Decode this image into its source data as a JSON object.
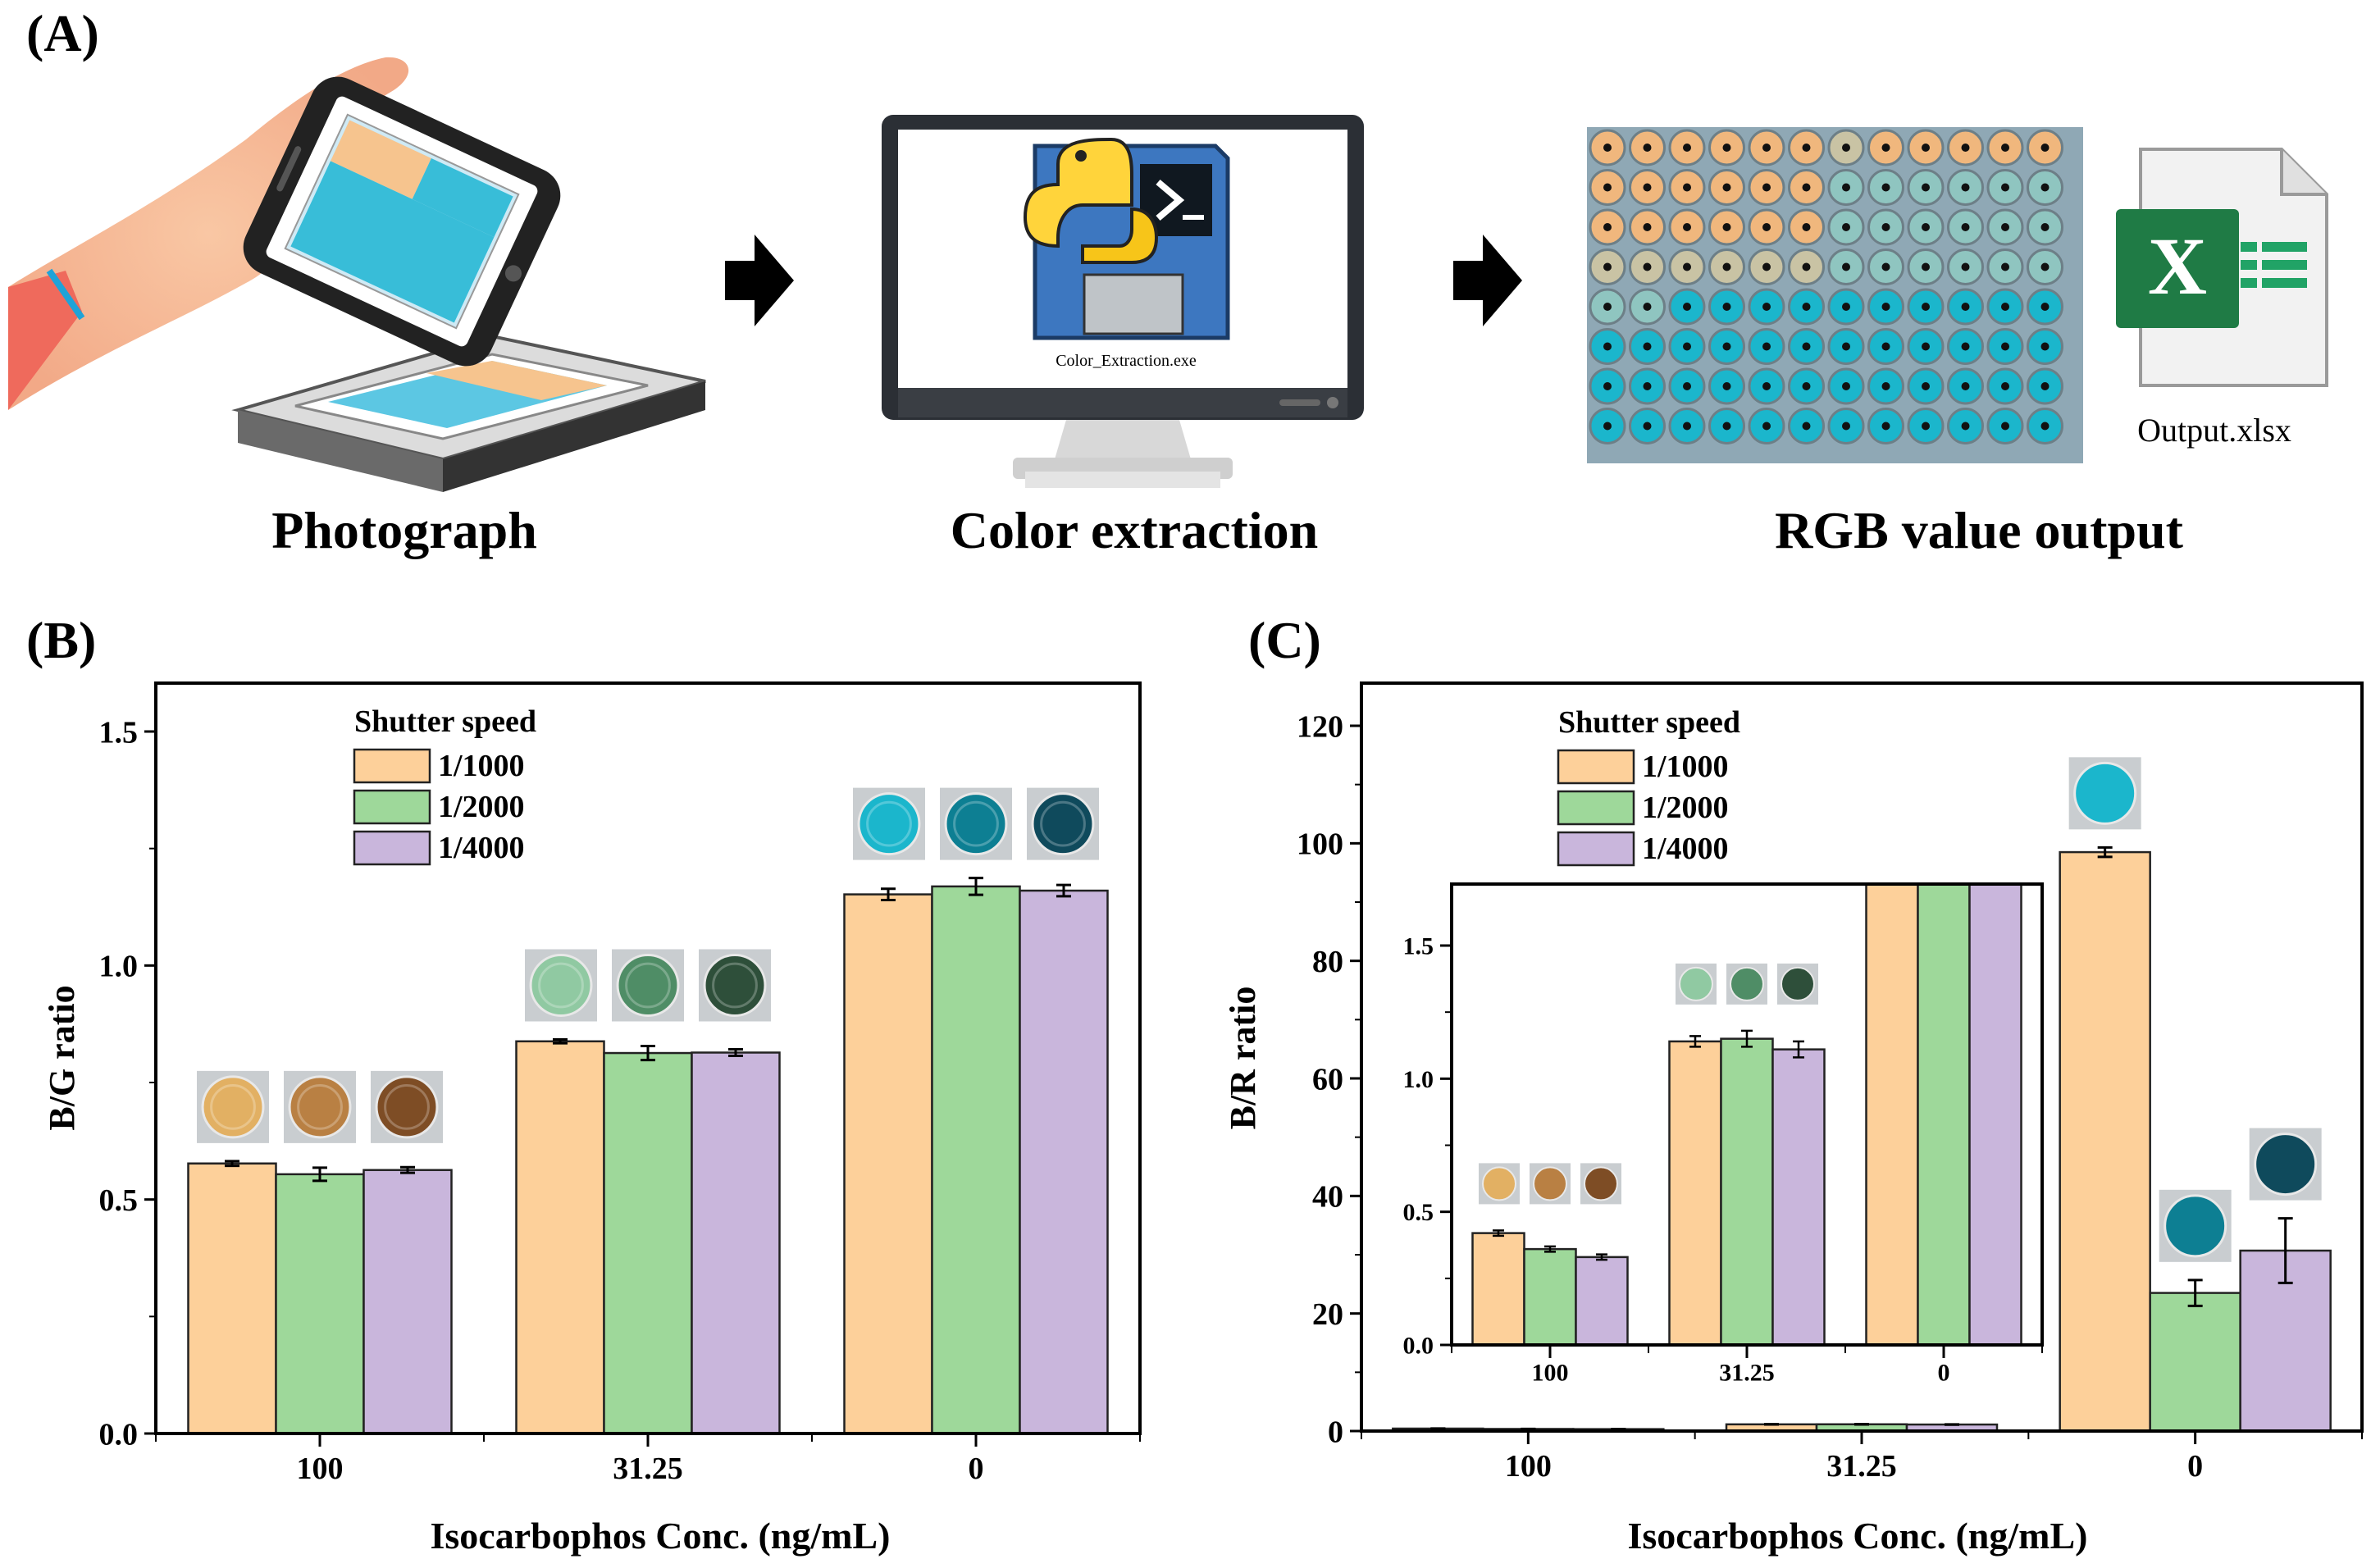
{
  "colors": {
    "orange": "#fdd09a",
    "green": "#9ed89a",
    "purple": "#c9b6dc",
    "cyan": "#1bb6cc",
    "excel": "#1f7b45"
  },
  "panel_a": {
    "label": "(A)",
    "steps": [
      {
        "title": "Photograph",
        "icon": "phone-photographing-plate-icon"
      },
      {
        "title": "Color extraction",
        "icon": "python-program-monitor-icon",
        "program_name": "Color_Extraction.exe"
      },
      {
        "title": "RGB value output",
        "icon": "well-plate-image-icon",
        "file_name": "Output.xlsx",
        "file_icon_letter": "X"
      }
    ]
  },
  "chart_data": [
    {
      "id": "B",
      "panel_label": "(B)",
      "type": "bar",
      "title": "",
      "xlabel": "Isocarbophos Conc. (ng/mL)",
      "ylabel": "B/G ratio",
      "ylim": [
        0,
        1.6
      ],
      "yticks": [
        "0.0",
        "0.5",
        "1.0",
        "1.5"
      ],
      "ytick_values": [
        0,
        0.5,
        1.0,
        1.5
      ],
      "categories": [
        "100",
        "31.25",
        "0"
      ],
      "legend_title": "Shutter speed",
      "legend_position": "top-left",
      "series": [
        {
          "name": "1/1000",
          "values": [
            0.577,
            0.838,
            1.152
          ],
          "errors": [
            0.005,
            0.004,
            0.012
          ]
        },
        {
          "name": "1/2000",
          "values": [
            0.554,
            0.813,
            1.169
          ],
          "errors": [
            0.014,
            0.015,
            0.018
          ]
        },
        {
          "name": "1/4000",
          "values": [
            0.563,
            0.814,
            1.16
          ],
          "errors": [
            0.006,
            0.007,
            0.012
          ]
        }
      ],
      "well_colors": [
        [
          "#e2b063",
          "#b98043",
          "#7e4d25"
        ],
        [
          "#90c9a2",
          "#4f8d66",
          "#2e4f3a"
        ],
        [
          "#1bb6cc",
          "#0d7f93",
          "#0f4a5c"
        ]
      ]
    },
    {
      "id": "C",
      "panel_label": "(C)",
      "type": "bar",
      "title": "",
      "xlabel": "Isocarbophos Conc. (ng/mL)",
      "ylabel": "B/R ratio",
      "ylim": [
        0,
        125
      ],
      "yticks": [
        "0",
        "20",
        "40",
        "60",
        "80",
        "100",
        "120"
      ],
      "ytick_values": [
        0,
        20,
        40,
        60,
        80,
        100,
        120
      ],
      "categories": [
        "100",
        "31.25",
        "0"
      ],
      "legend_title": "Shutter speed",
      "legend_position": "top-left",
      "series": [
        {
          "name": "1/1000",
          "values": [
            0.42,
            1.14,
            98.5
          ],
          "errors": [
            0.01,
            0.02,
            0.8
          ]
        },
        {
          "name": "1/2000",
          "values": [
            0.36,
            1.15,
            23.5
          ],
          "errors": [
            0.01,
            0.03,
            2.2
          ]
        },
        {
          "name": "1/4000",
          "values": [
            0.33,
            1.11,
            30.7
          ],
          "errors": [
            0.01,
            0.03,
            5.5
          ]
        }
      ],
      "well_colors": [
        [],
        [],
        [
          "#1bb6cc",
          "#0d7f93",
          "#0f4a5c"
        ]
      ],
      "inset": {
        "ylim": [
          0,
          1.8
        ],
        "yticks": [
          "0.0",
          "0.5",
          "1.0",
          "1.5"
        ],
        "ytick_values": [
          0,
          0.5,
          1.0,
          1.5
        ],
        "categories": [
          "100",
          "31.25",
          "0"
        ],
        "well_colors": [
          [
            "#e2b063",
            "#b98043",
            "#7e4d25"
          ],
          [
            "#90c9a2",
            "#4f8d66",
            "#2e4f3a"
          ],
          []
        ]
      }
    }
  ]
}
